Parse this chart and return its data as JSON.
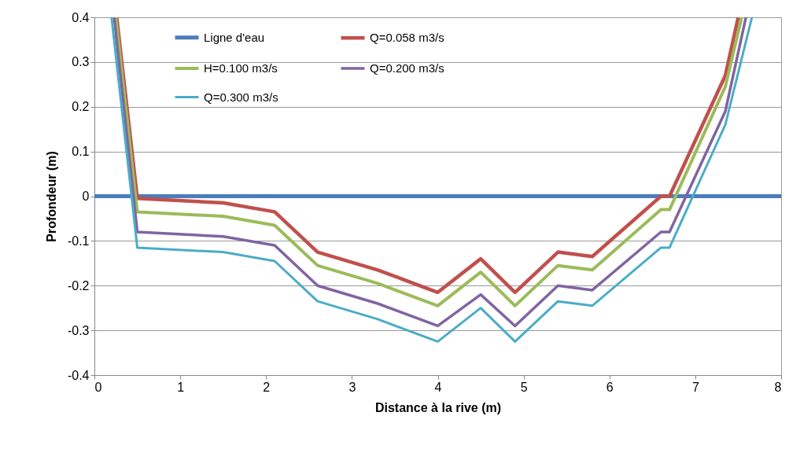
{
  "chart_data": {
    "type": "line",
    "xlabel": "Distance à la rive (m)",
    "ylabel": "Profondeur (m)",
    "xlim": [
      0,
      8
    ],
    "xticks": [
      0,
      1,
      2,
      3,
      4,
      5,
      6,
      7,
      8
    ],
    "ylim": [
      -0.4,
      0.4
    ],
    "yticks": [
      -0.4,
      -0.3,
      -0.2,
      -0.1,
      0,
      0.1,
      0.2,
      0.3,
      0.4
    ],
    "grid": "y",
    "legend": "top",
    "series": [
      {
        "name": "Ligne d'eau",
        "color": "#4a7ebb",
        "x": [
          0,
          8
        ],
        "values": [
          0,
          0
        ]
      },
      {
        "name": "Q=0.058 m3/s",
        "color": "#c0504d",
        "x": [
          0.26,
          0.5,
          1.5,
          2.1,
          2.6,
          3.3,
          4.0,
          4.5,
          4.9,
          5.4,
          5.8,
          6.6,
          6.7,
          7.35,
          7.5
        ],
        "values": [
          0.4,
          -0.005,
          -0.015,
          -0.035,
          -0.125,
          -0.165,
          -0.215,
          -0.14,
          -0.215,
          -0.125,
          -0.135,
          0,
          0,
          0.27,
          0.4
        ]
      },
      {
        "name": "H=0.100 m3/s",
        "color": "#9bbb59",
        "x": [
          0.25,
          0.5,
          1.5,
          2.1,
          2.6,
          3.3,
          4.0,
          4.5,
          4.9,
          5.4,
          5.8,
          6.6,
          6.7,
          7.35,
          7.54
        ],
        "values": [
          0.4,
          -0.035,
          -0.045,
          -0.065,
          -0.155,
          -0.195,
          -0.245,
          -0.17,
          -0.245,
          -0.155,
          -0.165,
          -0.03,
          -0.03,
          0.245,
          0.4
        ]
      },
      {
        "name": "Q=0.200 m3/s",
        "color": "#8064a2",
        "x": [
          0.23,
          0.5,
          1.5,
          2.1,
          2.6,
          3.3,
          4.0,
          4.5,
          4.9,
          5.4,
          5.8,
          6.6,
          6.7,
          7.35,
          7.59
        ],
        "values": [
          0.4,
          -0.08,
          -0.09,
          -0.11,
          -0.2,
          -0.24,
          -0.29,
          -0.22,
          -0.29,
          -0.2,
          -0.21,
          -0.08,
          -0.08,
          0.19,
          0.4
        ]
      },
      {
        "name": "Q=0.300 m3/s",
        "color": "#4bacc6",
        "x": [
          0.2,
          0.5,
          1.5,
          2.1,
          2.6,
          3.3,
          4.0,
          4.5,
          4.9,
          5.4,
          5.8,
          6.6,
          6.7,
          7.35,
          7.66
        ],
        "values": [
          0.4,
          -0.115,
          -0.125,
          -0.145,
          -0.235,
          -0.275,
          -0.325,
          -0.25,
          -0.325,
          -0.235,
          -0.245,
          -0.115,
          -0.115,
          0.16,
          0.4
        ]
      }
    ]
  }
}
